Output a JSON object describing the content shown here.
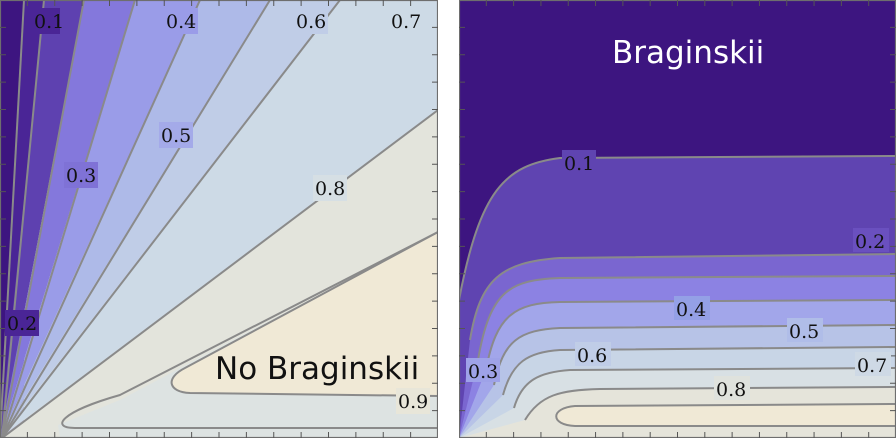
{
  "colors": {
    "background": "#ffffff",
    "contour_line": "#8a8a8a",
    "frame": "#6e6e6e",
    "level_fills": [
      "#3d1580",
      "#6a4cba",
      "#8c82e3",
      "#a2a6ea",
      "#b8c4e6",
      "#cfdbe6",
      "#dde3e2",
      "#e5e4da",
      "#f0e9d6"
    ]
  },
  "chart_data": [
    {
      "type": "contour",
      "title": "No Braginskii",
      "title_color": "#111111",
      "levels": [
        0.1,
        0.2,
        0.3,
        0.4,
        0.5,
        0.6,
        0.7,
        0.8,
        0.9
      ],
      "contour_labels": [
        "0.1",
        "0.2",
        "0.3",
        "0.4",
        "0.5",
        "0.6",
        "0.7",
        "0.8",
        "0.9"
      ],
      "grid": false,
      "legend": "none"
    },
    {
      "type": "contour",
      "title": "Braginskii",
      "title_color": "#ffffff",
      "levels": [
        0.1,
        0.2,
        0.3,
        0.4,
        0.5,
        0.6,
        0.7,
        0.8
      ],
      "contour_labels": [
        "0.1",
        "0.2",
        "0.3",
        "0.4",
        "0.5",
        "0.6",
        "0.7",
        "0.8"
      ],
      "grid": false,
      "legend": "none"
    }
  ]
}
